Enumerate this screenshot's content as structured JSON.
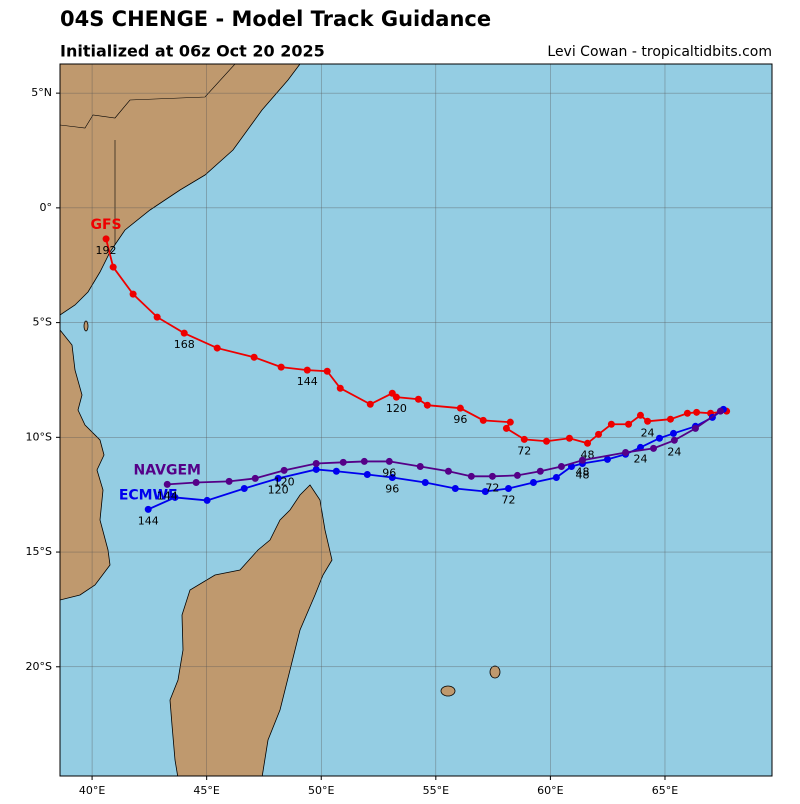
{
  "chart_data": {
    "type": "line",
    "title": "04S CHENGE - Model Track Guidance",
    "subtitle": "Initialized at 06z Oct 20 2025",
    "credit": "Levi Cowan - tropicaltidbits.com",
    "xlim": [
      38.6,
      69.67
    ],
    "ylim": [
      -24.76,
      6.27
    ],
    "grid": true,
    "xticks": [
      {
        "value": 40,
        "label": "40°E"
      },
      {
        "value": 45,
        "label": "45°E"
      },
      {
        "value": 50,
        "label": "50°E"
      },
      {
        "value": 55,
        "label": "55°E"
      },
      {
        "value": 60,
        "label": "60°E"
      },
      {
        "value": 65,
        "label": "65°E"
      }
    ],
    "yticks": [
      {
        "value": 5,
        "label": "5°N"
      },
      {
        "value": 0,
        "label": "0°"
      },
      {
        "value": -5,
        "label": "5°S"
      },
      {
        "value": -10,
        "label": "10°S"
      },
      {
        "value": -15,
        "label": "15°S"
      },
      {
        "value": -20,
        "label": "20°S"
      }
    ],
    "series": [
      {
        "name": "GFS",
        "color": "#ee0000",
        "x": [
          67.69,
          66.99,
          66.38,
          65.98,
          65.24,
          64.24,
          63.93,
          63.41,
          62.66,
          62.1,
          61.62,
          60.83,
          59.83,
          58.86,
          58.08,
          58.25,
          57.07,
          56.07,
          54.63,
          54.24,
          53.28,
          53.1,
          52.14,
          50.83,
          50.26,
          49.39,
          48.25,
          47.07,
          45.46,
          44.02,
          42.84,
          41.79,
          40.92,
          40.61
        ],
        "values": [
          -8.86,
          -8.95,
          -8.91,
          -8.95,
          -9.21,
          -9.3,
          -9.04,
          -9.43,
          -9.43,
          -9.87,
          -10.26,
          -10.04,
          -10.17,
          -10.09,
          -9.61,
          -9.34,
          -9.26,
          -8.73,
          -8.6,
          -8.34,
          -8.25,
          -8.08,
          -8.56,
          -7.86,
          -7.12,
          -7.07,
          -6.94,
          -6.51,
          -6.11,
          -5.46,
          -4.76,
          -3.76,
          -2.58,
          -1.35
        ],
        "labels": [
          null,
          null,
          null,
          null,
          null,
          24,
          null,
          null,
          null,
          null,
          48,
          null,
          null,
          72,
          null,
          null,
          null,
          96,
          null,
          null,
          120,
          null,
          null,
          null,
          null,
          144,
          null,
          null,
          null,
          168,
          null,
          null,
          null,
          192
        ]
      },
      {
        "name": "ECMWF",
        "color": "#0000ee",
        "x": [
          67.55,
          67.07,
          66.33,
          65.37,
          64.76,
          63.93,
          63.28,
          62.49,
          61.4,
          60.92,
          60.26,
          59.26,
          58.17,
          57.16,
          55.85,
          54.54,
          53.1,
          52.01,
          50.66,
          49.78,
          48.12,
          46.64,
          45.02,
          43.62,
          42.45
        ],
        "values": [
          -8.78,
          -9.13,
          -9.52,
          -9.83,
          -10.04,
          -10.44,
          -10.74,
          -10.96,
          -11.14,
          -11.27,
          -11.75,
          -11.97,
          -12.23,
          -12.36,
          -12.23,
          -11.97,
          -11.75,
          -11.62,
          -11.48,
          -11.4,
          -11.79,
          -12.23,
          -12.75,
          -12.62,
          -13.14
        ],
        "labels": [
          null,
          null,
          null,
          null,
          null,
          24,
          null,
          null,
          48,
          null,
          null,
          null,
          72,
          null,
          null,
          null,
          96,
          null,
          null,
          null,
          120,
          null,
          null,
          null,
          144
        ]
      },
      {
        "name": "NAVGEM",
        "color": "#550088",
        "x": [
          67.42,
          66.33,
          65.41,
          64.5,
          63.28,
          61.4,
          60.48,
          59.56,
          58.56,
          57.47,
          56.55,
          55.55,
          54.32,
          52.97,
          51.88,
          50.96,
          49.78,
          48.38,
          47.12,
          45.98,
          44.54,
          43.28
        ],
        "values": [
          -8.86,
          -9.61,
          -10.13,
          -10.48,
          -10.66,
          -11.0,
          -11.27,
          -11.48,
          -11.66,
          -11.7,
          -11.7,
          -11.48,
          -11.27,
          -11.05,
          -11.05,
          -11.09,
          -11.14,
          -11.44,
          -11.79,
          -11.92,
          -11.97,
          -12.05
        ],
        "labels": [
          null,
          null,
          24,
          null,
          null,
          48,
          null,
          null,
          null,
          72,
          null,
          null,
          null,
          96,
          null,
          null,
          null,
          120,
          null,
          null,
          null,
          144
        ]
      }
    ]
  }
}
